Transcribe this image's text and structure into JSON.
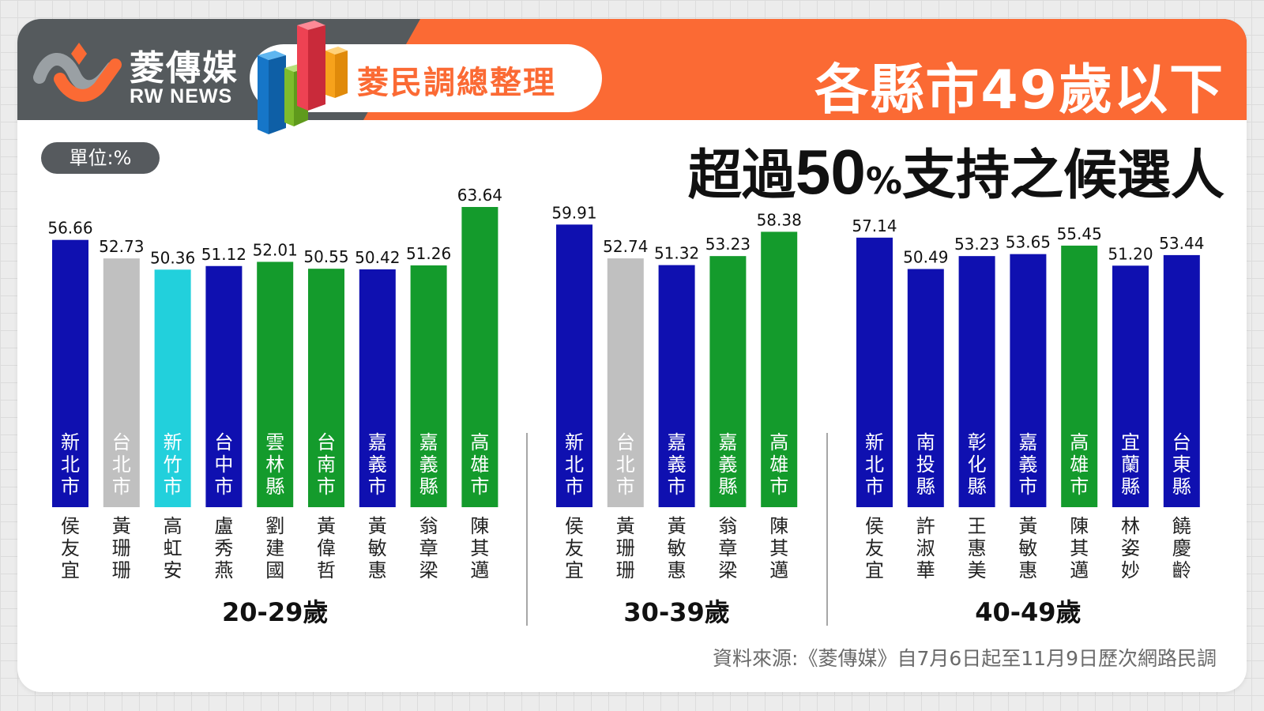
{
  "brand": {
    "name_cn": "菱傳媒",
    "name_en": "RW NEWS"
  },
  "header": {
    "tag": "菱民調總整理",
    "title_line1": "各縣市49歲以下",
    "title_line2_a": "超過",
    "title_line2_num": "50",
    "title_line2_pct": "%",
    "title_line2_b": "支持之候選人"
  },
  "unit_label": "單位:%",
  "source": "資料來源:《菱傳媒》自7月6日起至11月9日歷次網路民調",
  "colors": {
    "blue": "#0f10b0",
    "green": "#149b2c",
    "gray": "#c0c0c0",
    "cyan": "#22d0dc",
    "orange": "#fb6a34",
    "dark": "#555a5d"
  },
  "chart_data": {
    "type": "bar",
    "y_unit": "%",
    "ylim": [
      0,
      70
    ],
    "grid": false,
    "groups": [
      {
        "label": "20-29歲",
        "bars": [
          {
            "region": "新北市",
            "candidate": "侯友宜",
            "value": 56.66,
            "value_label": "56.66",
            "color": "blue"
          },
          {
            "region": "台北市",
            "candidate": "黃珊珊",
            "value": 52.73,
            "value_label": "52.73",
            "color": "gray"
          },
          {
            "region": "新竹市",
            "candidate": "高虹安",
            "value": 50.36,
            "value_label": "50.36",
            "color": "cyan"
          },
          {
            "region": "台中市",
            "candidate": "盧秀燕",
            "value": 51.12,
            "value_label": "51.12",
            "color": "blue"
          },
          {
            "region": "雲林縣",
            "candidate": "劉建國",
            "value": 52.01,
            "value_label": "52.01",
            "color": "green"
          },
          {
            "region": "台南市",
            "candidate": "黃偉哲",
            "value": 50.55,
            "value_label": "50.55",
            "color": "green"
          },
          {
            "region": "嘉義市",
            "candidate": "黃敏惠",
            "value": 50.42,
            "value_label": "50.42",
            "color": "blue"
          },
          {
            "region": "嘉義縣",
            "candidate": "翁章梁",
            "value": 51.26,
            "value_label": "51.26",
            "color": "green"
          },
          {
            "region": "高雄市",
            "candidate": "陳其邁",
            "value": 63.64,
            "value_label": "63.64",
            "color": "green"
          }
        ]
      },
      {
        "label": "30-39歲",
        "bars": [
          {
            "region": "新北市",
            "candidate": "侯友宜",
            "value": 59.91,
            "value_label": "59.91",
            "color": "blue"
          },
          {
            "region": "台北市",
            "candidate": "黃珊珊",
            "value": 52.74,
            "value_label": "52.74",
            "color": "gray"
          },
          {
            "region": "嘉義市",
            "candidate": "黃敏惠",
            "value": 51.32,
            "value_label": "51.32",
            "color": "blue"
          },
          {
            "region": "嘉義縣",
            "candidate": "翁章梁",
            "value": 53.23,
            "value_label": "53.23",
            "color": "green"
          },
          {
            "region": "高雄市",
            "candidate": "陳其邁",
            "value": 58.38,
            "value_label": "58.38",
            "color": "green"
          }
        ]
      },
      {
        "label": "40-49歲",
        "bars": [
          {
            "region": "新北市",
            "candidate": "侯友宜",
            "value": 57.14,
            "value_label": "57.14",
            "color": "blue"
          },
          {
            "region": "南投縣",
            "candidate": "許淑華",
            "value": 50.49,
            "value_label": "50.49",
            "color": "blue"
          },
          {
            "region": "彰化縣",
            "candidate": "王惠美",
            "value": 53.23,
            "value_label": "53.23",
            "color": "blue"
          },
          {
            "region": "嘉義市",
            "candidate": "黃敏惠",
            "value": 53.65,
            "value_label": "53.65",
            "color": "blue"
          },
          {
            "region": "高雄市",
            "candidate": "陳其邁",
            "value": 55.45,
            "value_label": "55.45",
            "color": "green"
          },
          {
            "region": "宜蘭縣",
            "candidate": "林姿妙",
            "value": 51.2,
            "value_label": "51.20",
            "color": "blue"
          },
          {
            "region": "台東縣",
            "candidate": "饒慶齡",
            "value": 53.44,
            "value_label": "53.44",
            "color": "blue"
          }
        ]
      }
    ]
  }
}
